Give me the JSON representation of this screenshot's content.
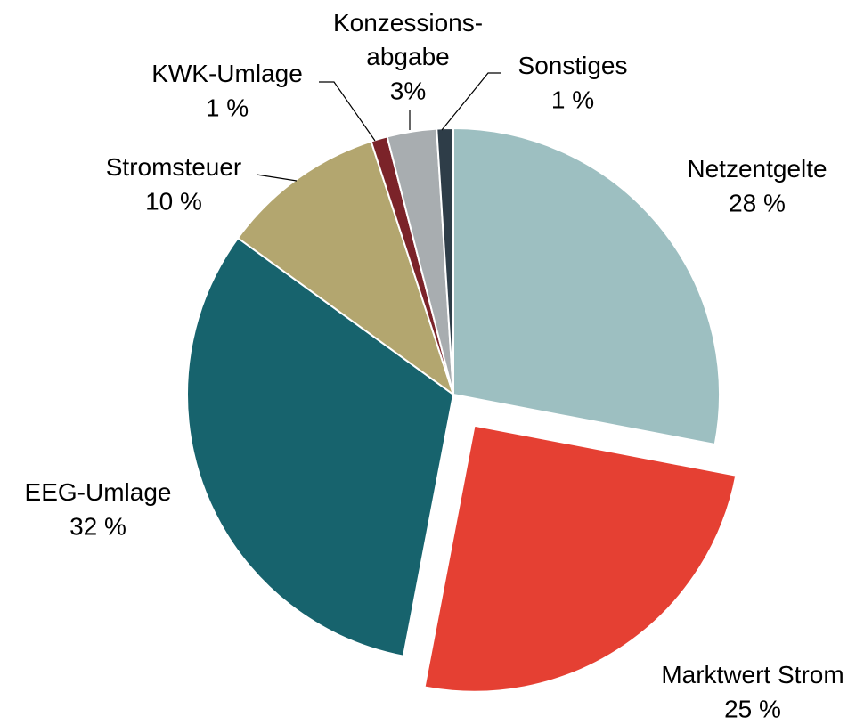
{
  "chart_data": {
    "type": "pie",
    "categories": [
      "Netzentgelte",
      "Marktwert Strom",
      "EEG-Umlage",
      "Stromsteuer",
      "KWK-Umlage",
      "Konzessions-\nabgabe",
      "Sonstiges"
    ],
    "values": [
      28,
      25,
      32,
      10,
      1,
      3,
      1
    ],
    "value_labels": [
      "28 %",
      "25 %",
      "32 %",
      "10 %",
      "1 %",
      "3%",
      "1 %"
    ],
    "colors": [
      "#9dbfc1",
      "#e54033",
      "#17636d",
      "#b3a66f",
      "#7b2329",
      "#a8adb0",
      "#2e3d48"
    ],
    "exploded": [
      1
    ]
  }
}
